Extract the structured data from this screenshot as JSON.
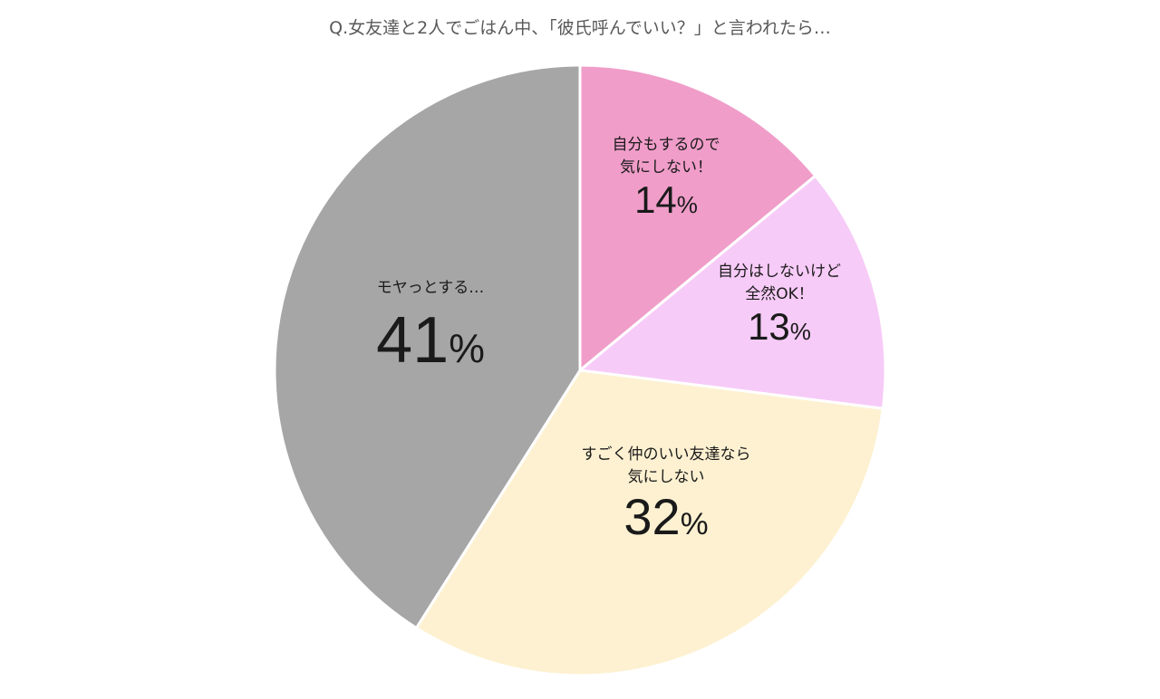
{
  "chart_data": {
    "type": "pie",
    "title": "Q.女友達と2人でごはん中、「彼氏呼んでいい？」と言われたら…",
    "start_angle_deg": 0,
    "direction": "clockwise",
    "categories": [
      "自分もするので気にしない！",
      "自分はしないけど全然OK！",
      "すごく仲のいい友達なら気にしない",
      "モヤっとする…"
    ],
    "values": [
      14,
      13,
      32,
      41
    ],
    "unit": "%",
    "colors": [
      "#f09dc9",
      "#f7cbf7",
      "#fdf1d1",
      "#a6a6a6"
    ],
    "legend": "none",
    "labels": [
      {
        "line1": "自分もするので",
        "line2": "気にしない！",
        "value": "14",
        "unit": "%"
      },
      {
        "line1": "自分はしないけど",
        "line2": "全然OK！",
        "value": "13",
        "unit": "%"
      },
      {
        "line1": "すごく仲のいい友達なら",
        "line2": "気にしない",
        "value": "32",
        "unit": "%"
      },
      {
        "line1": "モヤっとする…",
        "line2": "",
        "value": "41",
        "unit": "%"
      }
    ]
  }
}
